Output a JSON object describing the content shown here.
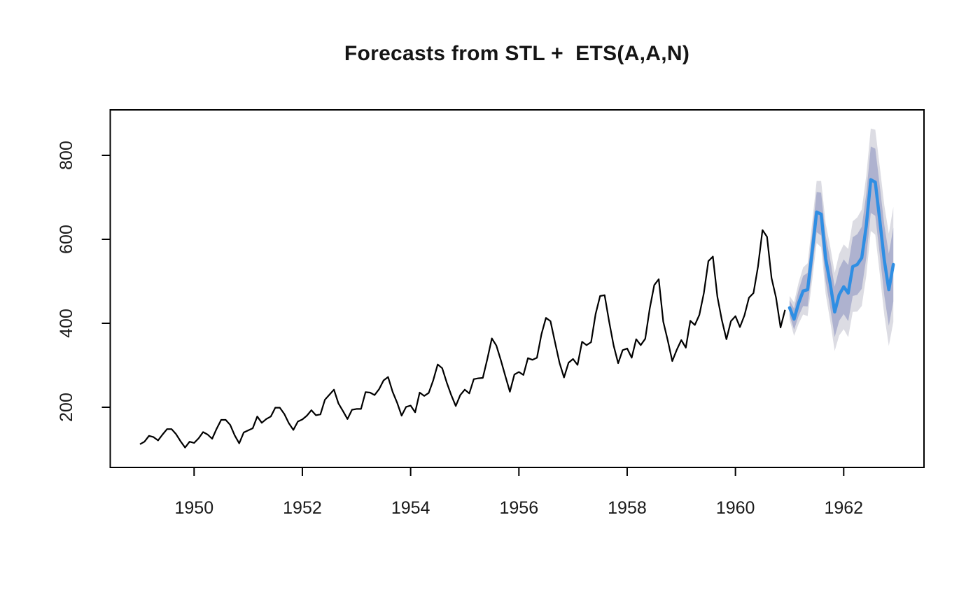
{
  "page": {
    "background": "#ffffff"
  },
  "chart_data": {
    "type": "line",
    "title": "Forecasts from STL +  ETS(A,A,N)",
    "xlabel": "",
    "ylabel": "",
    "grid": false,
    "legend_position": "none",
    "x_ticks": [
      1950,
      1952,
      1954,
      1956,
      1958,
      1960,
      1962
    ],
    "y_ticks": [
      200,
      400,
      600,
      800
    ],
    "xlim": [
      1948.45,
      1963.48
    ],
    "ylim": [
      60,
      908
    ],
    "axis_color": "#000000",
    "tick_label_color": "#1a1a1a",
    "history": {
      "start_year": 1949,
      "frequency": 12,
      "color": "#000000",
      "values": [
        112,
        118,
        132,
        129,
        121,
        135,
        148,
        148,
        136,
        119,
        104,
        118,
        115,
        126,
        141,
        135,
        125,
        149,
        170,
        170,
        158,
        133,
        114,
        140,
        145,
        150,
        178,
        163,
        172,
        178,
        199,
        199,
        184,
        162,
        146,
        166,
        171,
        180,
        193,
        181,
        183,
        218,
        230,
        242,
        209,
        191,
        172,
        194,
        196,
        196,
        236,
        235,
        229,
        243,
        264,
        272,
        237,
        211,
        180,
        201,
        204,
        188,
        235,
        227,
        234,
        264,
        302,
        293,
        259,
        229,
        203,
        229,
        242,
        233,
        267,
        269,
        270,
        315,
        364,
        347,
        312,
        274,
        237,
        278,
        284,
        277,
        317,
        313,
        318,
        374,
        413,
        405,
        355,
        306,
        271,
        306,
        315,
        301,
        356,
        348,
        355,
        422,
        465,
        467,
        404,
        347,
        305,
        336,
        340,
        318,
        362,
        348,
        363,
        435,
        491,
        505,
        404,
        359,
        310,
        337,
        360,
        342,
        406,
        396,
        420,
        472,
        548,
        559,
        463,
        407,
        362,
        405,
        417,
        391,
        419,
        461,
        472,
        535,
        622,
        606,
        508,
        461,
        390,
        432
      ]
    },
    "forecast": {
      "start_year": 1961,
      "frequency": 12,
      "horizon_months": 24,
      "color": "#2f8ee3",
      "mean": [
        437,
        410,
        448,
        477,
        480,
        570,
        665,
        660,
        554,
        495,
        427,
        468,
        487,
        472,
        535,
        540,
        556,
        632,
        742,
        736,
        645,
        550,
        480,
        540
      ],
      "intervals": [
        {
          "level": 80,
          "color": "#aeb2cf",
          "lo": [
            419,
            385,
            417,
            441,
            440,
            526,
            617,
            609,
            500,
            438,
            367,
            406,
            422,
            405,
            465,
            468,
            482,
            556,
            663,
            656,
            563,
            466,
            394,
            452
          ],
          "hi": [
            455,
            435,
            479,
            513,
            520,
            614,
            713,
            711,
            608,
            552,
            487,
            530,
            552,
            539,
            605,
            612,
            630,
            708,
            821,
            816,
            727,
            634,
            566,
            628
          ]
        },
        {
          "level": 95,
          "color": "#dcdce3",
          "lo": [
            409,
            370,
            399,
            421,
            417,
            501,
            591,
            581,
            470,
            406,
            334,
            371,
            386,
            367,
            427,
            428,
            441,
            513,
            620,
            611,
            517,
            419,
            346,
            403
          ],
          "hi": [
            465,
            450,
            497,
            533,
            543,
            639,
            739,
            739,
            638,
            584,
            520,
            565,
            588,
            577,
            643,
            652,
            671,
            751,
            864,
            861,
            773,
            681,
            614,
            677
          ]
        }
      ]
    }
  }
}
